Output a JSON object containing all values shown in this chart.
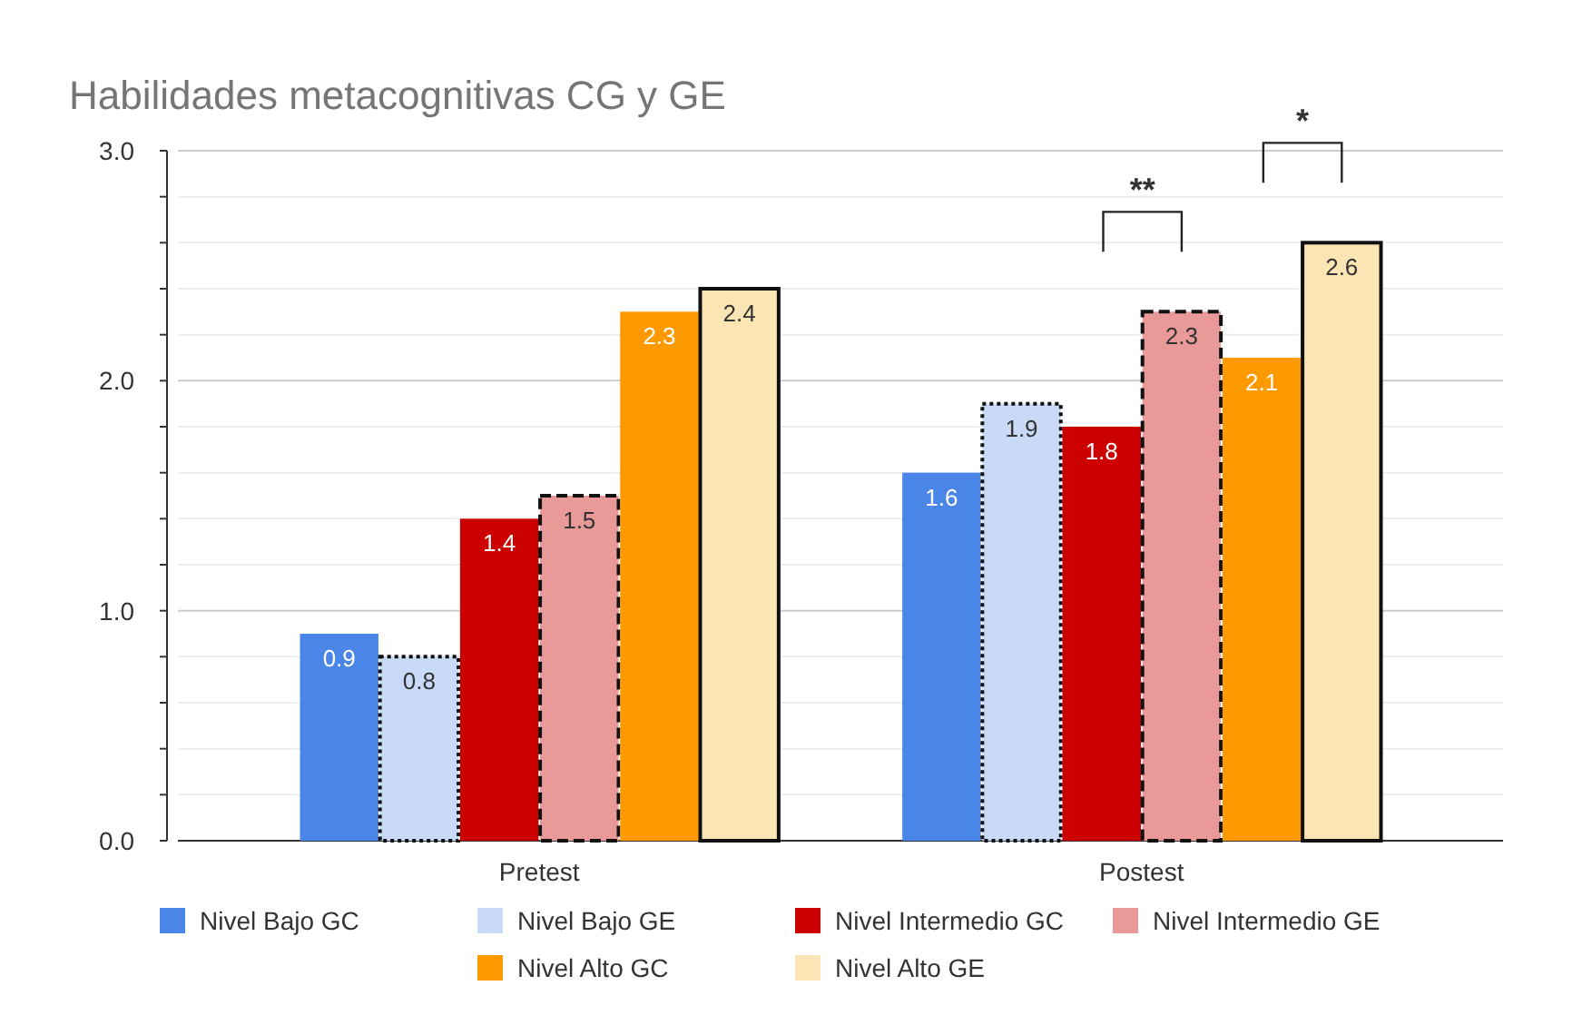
{
  "chart_data": {
    "type": "bar",
    "title": "Habilidades metacognitivas  CG y GE",
    "categories": [
      "Pretest",
      "Postest"
    ],
    "series": [
      {
        "name": "Nivel Bajo GC",
        "color": "#4a86e8",
        "values": [
          0.9,
          1.6
        ]
      },
      {
        "name": "Nivel Bajo GE",
        "color": "#c9daf8",
        "values": [
          0.8,
          1.9
        ],
        "line_style": "dotted"
      },
      {
        "name": "Nivel Intermedio GC",
        "color": "#cc0000",
        "values": [
          1.4,
          1.8
        ]
      },
      {
        "name": "Nivel Intermedio GE",
        "color": "#ea9999",
        "values": [
          1.5,
          2.3
        ],
        "line_style": "dashed"
      },
      {
        "name": "Nivel Alto GC",
        "color": "#ff9900",
        "values": [
          2.3,
          2.1
        ]
      },
      {
        "name": "Nivel Alto GE",
        "color": "#fce5b4",
        "values": [
          2.4,
          2.6
        ],
        "line_style": "solid"
      }
    ],
    "ylim": [
      0,
      3
    ],
    "yticks": [
      {
        "value": 0,
        "label": "0.0"
      },
      {
        "value": 0.2,
        "label": null
      },
      {
        "value": 0.4,
        "label": null
      },
      {
        "value": 0.6,
        "label": null
      },
      {
        "value": 0.8,
        "label": null
      },
      {
        "value": 1,
        "label": "1.0"
      },
      {
        "value": 1.2,
        "label": null
      },
      {
        "value": 1.4,
        "label": null
      },
      {
        "value": 1.6,
        "label": null
      },
      {
        "value": 1.8,
        "label": null
      },
      {
        "value": 2,
        "label": "2.0"
      },
      {
        "value": 2.2,
        "label": null
      },
      {
        "value": 2.4,
        "label": null
      },
      {
        "value": 2.6,
        "label": null
      },
      {
        "value": 2.8,
        "label": null
      },
      {
        "value": 3,
        "label": "3.0"
      }
    ],
    "grid": true,
    "legend": "bottom",
    "data_labels": true,
    "annotations": [
      "**",
      "*"
    ]
  }
}
